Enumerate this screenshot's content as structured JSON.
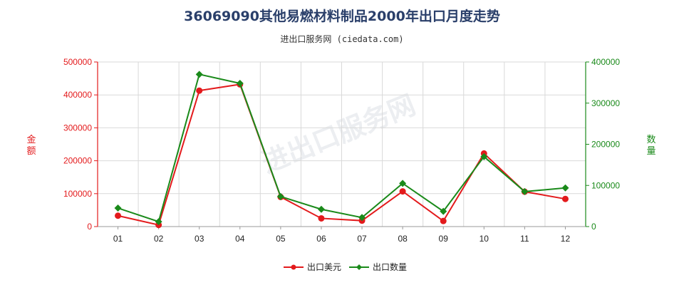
{
  "chart_data": {
    "type": "line",
    "title": "36069090其他易燃材料制品2000年出口月度走势",
    "subtitle": "进出口服务网 (ciedata.com)",
    "categories": [
      "01",
      "02",
      "03",
      "04",
      "05",
      "06",
      "07",
      "08",
      "09",
      "10",
      "11",
      "12"
    ],
    "y_left": {
      "label": "金额",
      "ylim": [
        0,
        500000
      ],
      "ticks": [
        "0",
        "100000",
        "200000",
        "300000",
        "400000",
        "500000"
      ]
    },
    "y_right": {
      "label": "数量",
      "ylim": [
        0,
        400000
      ],
      "ticks": [
        "0",
        "100000",
        "200000",
        "300000",
        "400000"
      ]
    },
    "series": [
      {
        "name": "出口美元",
        "axis": "left",
        "color": "#e31a1c",
        "values": [
          33000,
          5000,
          413000,
          432000,
          90000,
          25000,
          18000,
          107000,
          17000,
          222000,
          106000,
          84000
        ]
      },
      {
        "name": "出口数量",
        "axis": "right",
        "color": "#1a8a1a",
        "values": [
          45000,
          12000,
          370000,
          348000,
          73000,
          42000,
          22000,
          105000,
          37000,
          170000,
          85000,
          94000
        ]
      }
    ],
    "grid": true,
    "legend_position": "bottom-center"
  },
  "watermark": "进出口服务网"
}
